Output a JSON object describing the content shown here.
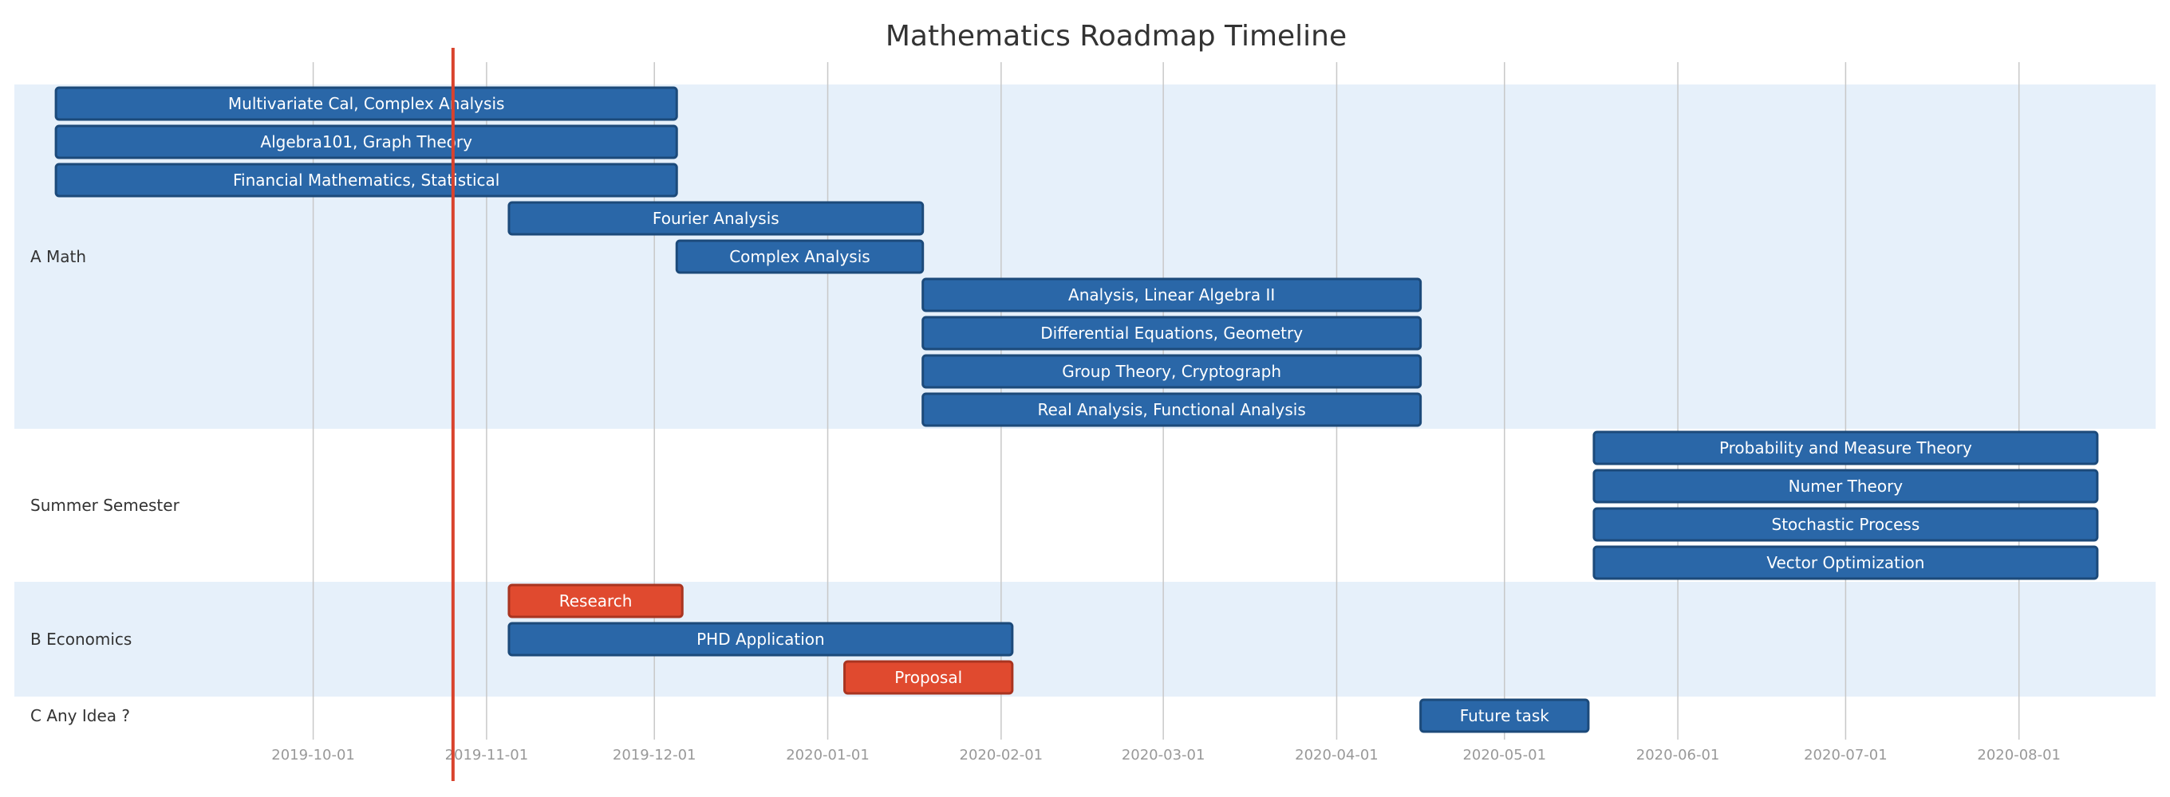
{
  "chart_data": {
    "type": "gantt",
    "title": "Mathematics Roadmap Timeline",
    "today": "2019-10-26",
    "x_range": [
      "2019-08-06",
      "2020-08-28"
    ],
    "ticks": [
      "2019-10-01",
      "2019-11-01",
      "2019-12-01",
      "2020-01-01",
      "2020-02-01",
      "2020-03-01",
      "2020-04-01",
      "2020-05-01",
      "2020-06-01",
      "2020-07-01",
      "2020-08-01"
    ],
    "colors": {
      "band": "#e6f0fa",
      "task": "#2a67a8",
      "task_border": "#1c4a7a",
      "crit": "#e04a2f",
      "crit_border": "#a93420",
      "today": "#d9432d"
    },
    "sections": [
      {
        "name": "A Math",
        "shaded": true,
        "tasks": [
          {
            "label": "Multivariate Cal, Complex Analysis",
            "start": "2019-08-16",
            "end": "2019-12-05",
            "crit": false
          },
          {
            "label": "Algebra101, Graph Theory",
            "start": "2019-08-16",
            "end": "2019-12-05",
            "crit": false
          },
          {
            "label": "Financial Mathematics, Statistical",
            "start": "2019-08-16",
            "end": "2019-12-05",
            "crit": false
          },
          {
            "label": "Fourier Analysis",
            "start": "2019-11-05",
            "end": "2020-01-18",
            "crit": false
          },
          {
            "label": "Complex Analysis",
            "start": "2019-12-05",
            "end": "2020-01-18",
            "crit": false
          },
          {
            "label": "Analysis, Linear Algebra II",
            "start": "2020-01-18",
            "end": "2020-04-16",
            "crit": false
          },
          {
            "label": "Differential Equations, Geometry",
            "start": "2020-01-18",
            "end": "2020-04-16",
            "crit": false
          },
          {
            "label": "Group Theory, Cryptograph",
            "start": "2020-01-18",
            "end": "2020-04-16",
            "crit": false
          },
          {
            "label": "Real Analysis, Functional Analysis",
            "start": "2020-01-18",
            "end": "2020-04-16",
            "crit": false
          }
        ]
      },
      {
        "name": "Summer Semester",
        "shaded": false,
        "tasks": [
          {
            "label": "Probability and Measure Theory",
            "start": "2020-05-17",
            "end": "2020-08-15",
            "crit": false
          },
          {
            "label": "Numer Theory",
            "start": "2020-05-17",
            "end": "2020-08-15",
            "crit": false
          },
          {
            "label": "Stochastic Process",
            "start": "2020-05-17",
            "end": "2020-08-15",
            "crit": false
          },
          {
            "label": "Vector Optimization",
            "start": "2020-05-17",
            "end": "2020-08-15",
            "crit": false
          }
        ]
      },
      {
        "name": "B Economics",
        "shaded": true,
        "tasks": [
          {
            "label": "Research",
            "start": "2019-11-05",
            "end": "2019-12-06",
            "crit": true
          },
          {
            "label": "PHD Application",
            "start": "2019-11-05",
            "end": "2020-02-03",
            "crit": false
          },
          {
            "label": "Proposal",
            "start": "2020-01-04",
            "end": "2020-02-03",
            "crit": true
          }
        ]
      },
      {
        "name": "C Any Idea ?",
        "shaded": false,
        "tasks": [
          {
            "label": "Future task",
            "start": "2020-04-16",
            "end": "2020-05-16",
            "crit": false
          }
        ]
      }
    ]
  }
}
